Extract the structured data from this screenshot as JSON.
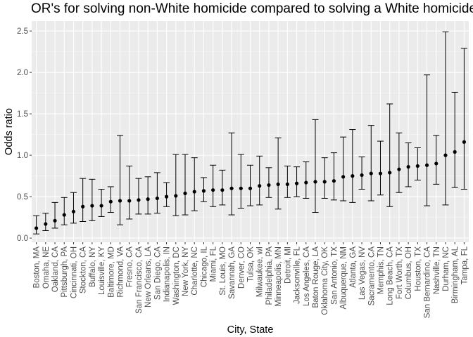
{
  "chart_data": {
    "type": "scatter",
    "subtype": "point-with-error-bars",
    "title": "OR's for solving non-White homicide compared to solving a White homicide in di",
    "xlabel": "City, State",
    "ylabel": "Odds ratio",
    "ylim": [
      -0.05,
      2.62
    ],
    "yticks": [
      0.0,
      0.5,
      1.0,
      1.5,
      2.0,
      2.5
    ],
    "ytick_labels": [
      "0.0",
      "0.5",
      "1.0",
      "1.5",
      "2.0",
      "2.5"
    ],
    "grid": true,
    "background": "#ebebeb",
    "grid_color": "#ffffff",
    "point_color": "#000000",
    "categories": [
      "Boston, MA",
      "Omaha, NE",
      "Oakland, CA",
      "Pittsburgh, PA",
      "Cincinnati, OH",
      "Stockton, CA",
      "Buffalo, NY",
      "Louisville, KY",
      "Baltimore, MD",
      "Richmond, VA",
      "Fresno, CA",
      "San Francisco, CA",
      "New Orleans, LA",
      "San Diego, CA",
      "Indianapolis, IN",
      "Washington, DC",
      "New York, NY",
      "Charlotte, NC",
      "Chicago, IL",
      "Miami, FL",
      "St. Louis, MO",
      "Savannah, GA",
      "Denver, CO",
      "Tulsa, OK",
      "Milwaukee, wI",
      "Philadelphia, PA",
      "Minneapolis, MN",
      "Detroit, MI",
      "Jacksonville, FL",
      "Los Angeles, CA",
      "Baton Rouge, LA",
      "Oklahoma City, OK",
      "San Antonio, TX",
      "Albuquerque, NM",
      "Atlanta, GA",
      "Las Vegas, NV",
      "Sacramento, CA",
      "Memphis, TN",
      "Long Beach, CA",
      "Fort Worth, TX",
      "Columbus, OH",
      "Houston, TX",
      "San Bernardino, CA",
      "Nashville, TN",
      "Durham, NC",
      "Birmingham, AL",
      "Tampa, FL"
    ],
    "values": [
      0.12,
      0.17,
      0.21,
      0.28,
      0.32,
      0.38,
      0.39,
      0.39,
      0.44,
      0.45,
      0.45,
      0.46,
      0.47,
      0.48,
      0.5,
      0.51,
      0.54,
      0.56,
      0.57,
      0.58,
      0.58,
      0.6,
      0.6,
      0.6,
      0.63,
      0.64,
      0.65,
      0.65,
      0.66,
      0.67,
      0.68,
      0.68,
      0.69,
      0.74,
      0.75,
      0.76,
      0.78,
      0.78,
      0.79,
      0.83,
      0.86,
      0.87,
      0.88,
      0.9,
      1.0,
      1.04,
      1.16
    ],
    "lower": [
      0.05,
      0.09,
      0.12,
      0.16,
      0.18,
      0.2,
      0.21,
      0.26,
      0.31,
      0.16,
      0.23,
      0.29,
      0.29,
      0.3,
      0.38,
      0.27,
      0.28,
      0.33,
      0.44,
      0.38,
      0.4,
      0.28,
      0.36,
      0.39,
      0.4,
      0.49,
      0.35,
      0.49,
      0.5,
      0.48,
      0.31,
      0.48,
      0.46,
      0.45,
      0.43,
      0.59,
      0.45,
      0.52,
      0.38,
      0.55,
      0.62,
      0.7,
      0.39,
      0.65,
      0.4,
      0.61,
      0.59
    ],
    "upper": [
      0.27,
      0.3,
      0.43,
      0.49,
      0.55,
      0.72,
      0.71,
      0.59,
      0.62,
      1.24,
      0.87,
      0.72,
      0.74,
      0.79,
      0.67,
      1.01,
      1.01,
      0.97,
      0.73,
      0.88,
      0.82,
      1.27,
      1.01,
      0.88,
      0.99,
      0.85,
      1.21,
      0.87,
      0.86,
      0.92,
      1.43,
      0.97,
      1.03,
      1.22,
      1.31,
      0.98,
      1.36,
      1.17,
      1.62,
      1.27,
      1.15,
      1.09,
      1.97,
      1.24,
      2.49,
      1.76,
      2.29
    ]
  }
}
